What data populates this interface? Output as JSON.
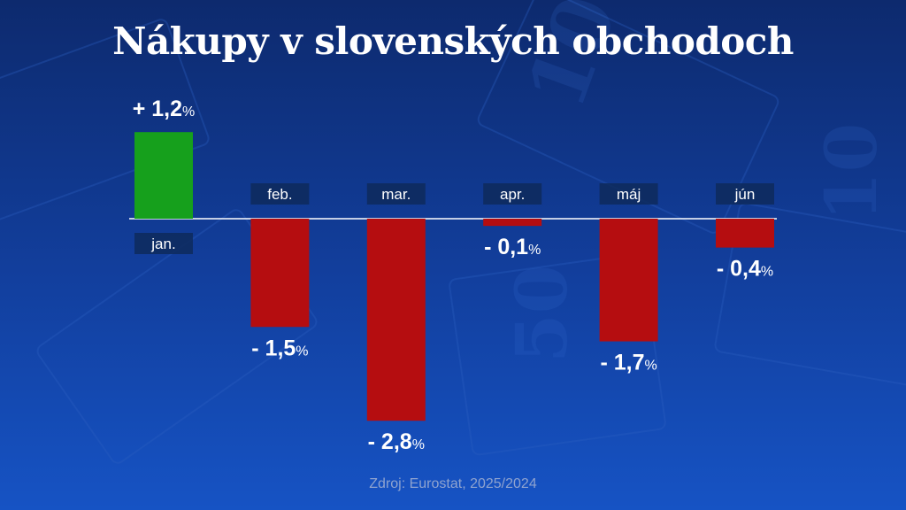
{
  "title": "Nákupy v slovenských obchodoch",
  "source": "Zdroj: Eurostat, 2025/2024",
  "colors": {
    "positive": "#16a01c",
    "negative": "#b50d10",
    "label_bg": "#0e2a5c",
    "axis": "#ffffff"
  },
  "chart_data": {
    "type": "bar",
    "categories": [
      "jan.",
      "feb.",
      "mar.",
      "apr.",
      "máj",
      "jún"
    ],
    "values": [
      1.2,
      -1.5,
      -2.8,
      -0.1,
      -1.7,
      -0.4
    ],
    "value_labels": [
      "+ 1,2",
      "- 1,5",
      "- 2,8",
      "- 0,1",
      "- 1,7",
      "- 0,4"
    ],
    "unit": "%",
    "title": "Nákupy v slovenských obchodoch",
    "xlabel": "",
    "ylabel": "",
    "ylim": [
      -2.8,
      1.2
    ],
    "grid": false,
    "legend": "none"
  }
}
